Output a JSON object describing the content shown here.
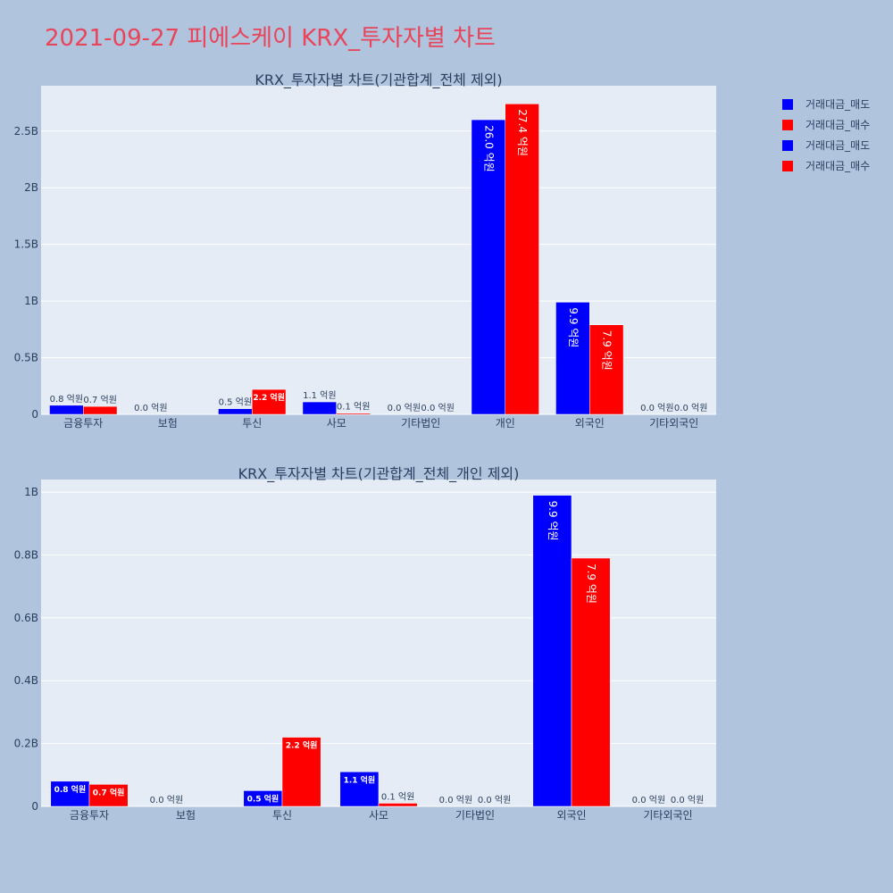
{
  "page_title": "2021-09-27 피에스케이 KRX_투자자별 차트",
  "colors": {
    "sell": "#0000ff",
    "buy": "#ff0000",
    "plot_bg": "#e5ecf6",
    "page_bg": "#b0c4de",
    "title": "#e8445a",
    "text": "#2a3f5f"
  },
  "legend": [
    {
      "label": "거래대금_매도",
      "color": "#0000ff"
    },
    {
      "label": "거래대금_매수",
      "color": "#ff0000"
    },
    {
      "label": "거래대금_매도",
      "color": "#0000ff"
    },
    {
      "label": "거래대금_매수",
      "color": "#ff0000"
    }
  ],
  "chart_data": [
    {
      "type": "bar",
      "title": "KRX_투자자별 차트(기관합계_전체 제외)",
      "categories": [
        "금융투자",
        "보험",
        "투신",
        "사모",
        "기타법인",
        "개인",
        "외국인",
        "기타외국인"
      ],
      "series": [
        {
          "name": "거래대금_매도",
          "values": [
            80000000,
            0,
            50000000,
            110000000,
            0,
            2600000000,
            990000000,
            0
          ],
          "labels": [
            "0.8 억원",
            "0.0 억원",
            "0.5 억원",
            "1.1 억원",
            "0.0 억원",
            "26.0 억원",
            "9.9 억원",
            "0.0 억원"
          ]
        },
        {
          "name": "거래대금_매수",
          "values": [
            70000000,
            0,
            220000000,
            10000000,
            0,
            2740000000,
            790000000,
            0
          ],
          "labels": [
            "0.7 억원",
            "",
            "2.2 억원",
            "0.1 억원",
            "0.0 억원",
            "27.4 억원",
            "7.9 억원",
            "0.0 억원"
          ]
        }
      ],
      "yticks": [
        0,
        500000000,
        1000000000,
        1500000000,
        2000000000,
        2500000000
      ],
      "ytick_labels": [
        "0",
        "0.5B",
        "1B",
        "1.5B",
        "2B",
        "2.5B"
      ],
      "ylim": [
        0,
        2900000000
      ],
      "grid": true
    },
    {
      "type": "bar",
      "title": "KRX_투자자별 차트(기관합계_전체_개인 제외)",
      "categories": [
        "금융투자",
        "보험",
        "투신",
        "사모",
        "기타법인",
        "외국인",
        "기타외국인"
      ],
      "series": [
        {
          "name": "거래대금_매도",
          "values": [
            80000000,
            0,
            50000000,
            110000000,
            0,
            990000000,
            0
          ],
          "labels": [
            "0.8 억원",
            "0.0 억원",
            "0.5 억원",
            "1.1 억원",
            "0.0 억원",
            "9.9 억원",
            "0.0 억원"
          ]
        },
        {
          "name": "거래대금_매수",
          "values": [
            70000000,
            0,
            220000000,
            10000000,
            0,
            790000000,
            0
          ],
          "labels": [
            "0.7 억원",
            "",
            "2.2 억원",
            "0.1 억원",
            "0.0 억원",
            "7.9 억원",
            "0.0 억원"
          ]
        }
      ],
      "yticks": [
        0,
        200000000,
        400000000,
        600000000,
        800000000,
        1000000000
      ],
      "ytick_labels": [
        "0",
        "0.2B",
        "0.4B",
        "0.6B",
        "0.8B",
        "1B"
      ],
      "ylim": [
        0,
        1040000000
      ],
      "grid": true
    }
  ]
}
